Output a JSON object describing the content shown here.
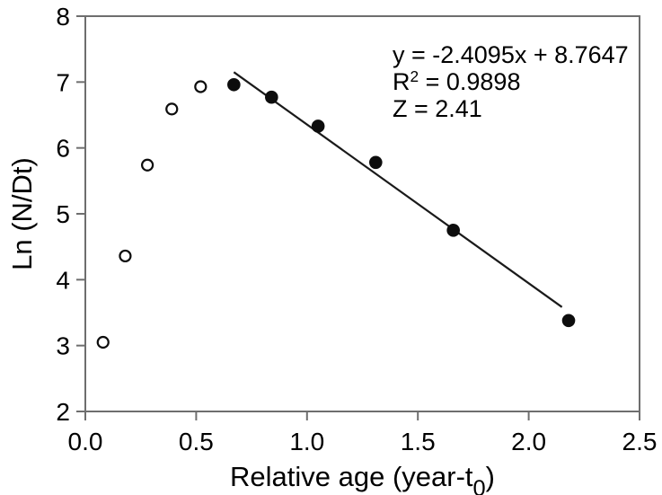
{
  "chart_data": {
    "type": "scatter",
    "title": "",
    "xlabel_parts": {
      "pre": "Relative age (year-t",
      "sub": "0",
      "post": ")"
    },
    "ylabel": "Ln (N/Dt)",
    "xlim": [
      0.0,
      2.5
    ],
    "ylim": [
      2,
      8
    ],
    "x_ticks": {
      "values": [
        0.0,
        0.5,
        1.0,
        1.5,
        2.0,
        2.5
      ],
      "labels": [
        "0.0",
        "0.5",
        "1.0",
        "1.5",
        "2.0",
        "2.5"
      ]
    },
    "y_ticks": {
      "values": [
        2,
        3,
        4,
        5,
        6,
        7,
        8
      ],
      "labels": [
        "2",
        "3",
        "4",
        "5",
        "6",
        "7",
        "8"
      ]
    },
    "grid": "off",
    "legend": "none",
    "series": [
      {
        "name": "pre-peak-open-circles",
        "marker": "open-circle",
        "points": [
          {
            "x": 0.08,
            "y": 3.05
          },
          {
            "x": 0.18,
            "y": 4.36
          },
          {
            "x": 0.28,
            "y": 5.74
          },
          {
            "x": 0.39,
            "y": 6.59
          },
          {
            "x": 0.52,
            "y": 6.93
          }
        ]
      },
      {
        "name": "regression-filled-circles",
        "marker": "filled-circle",
        "points": [
          {
            "x": 0.67,
            "y": 6.96
          },
          {
            "x": 0.84,
            "y": 6.77
          },
          {
            "x": 1.05,
            "y": 6.33
          },
          {
            "x": 1.31,
            "y": 5.78
          },
          {
            "x": 1.66,
            "y": 4.75
          },
          {
            "x": 2.18,
            "y": 3.38
          }
        ]
      }
    ],
    "trendline": {
      "slope": -2.4095,
      "intercept": 8.7647,
      "x_start": 0.67,
      "x_end": 2.15
    },
    "annotation": {
      "line1": "y = -2.4095x + 8.7647",
      "line2_pre": "R",
      "line2_sup": "2",
      "line2_post": " = 0.9898",
      "line3": "Z = 2.41"
    },
    "colors": {
      "frame": "#6e6e6e",
      "tick": "#6e6e6e",
      "text": "#000000",
      "marker": "#0d0d0d",
      "trendline": "#1a1a1a",
      "background": "#ffffff"
    }
  }
}
